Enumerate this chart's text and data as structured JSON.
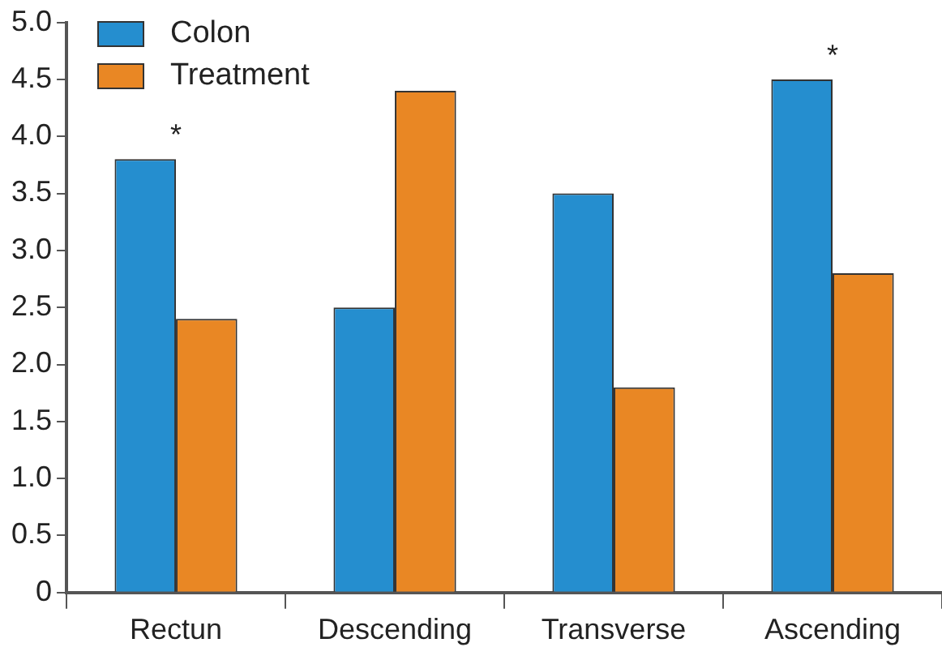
{
  "chart_data": {
    "type": "bar",
    "categories": [
      "Rectun",
      "Descending",
      "Transverse",
      "Ascending"
    ],
    "series": [
      {
        "name": "Colon",
        "color": "#258ecf",
        "values": [
          3.8,
          2.5,
          3.5,
          4.5
        ]
      },
      {
        "name": "Treatment",
        "color": "#e98724",
        "values": [
          2.4,
          4.4,
          1.8,
          2.8
        ]
      }
    ],
    "ylim": [
      0,
      5
    ],
    "yticks": [
      0,
      0.5,
      {
        "value": 1,
        "label": "1.0"
      },
      1.5,
      {
        "value": 2,
        "label": "2.0"
      },
      2.5,
      {
        "value": 3,
        "label": "3.0"
      },
      3.5,
      {
        "value": 4,
        "label": "4.0"
      },
      4.5,
      {
        "value": 5,
        "label": "5.0"
      }
    ],
    "annotations": [
      {
        "text": "*",
        "x": "Rectun",
        "y": 3.8
      },
      {
        "text": "*",
        "x": "Ascending",
        "y": 4.5
      }
    ],
    "grid": false,
    "legend": "top left"
  }
}
